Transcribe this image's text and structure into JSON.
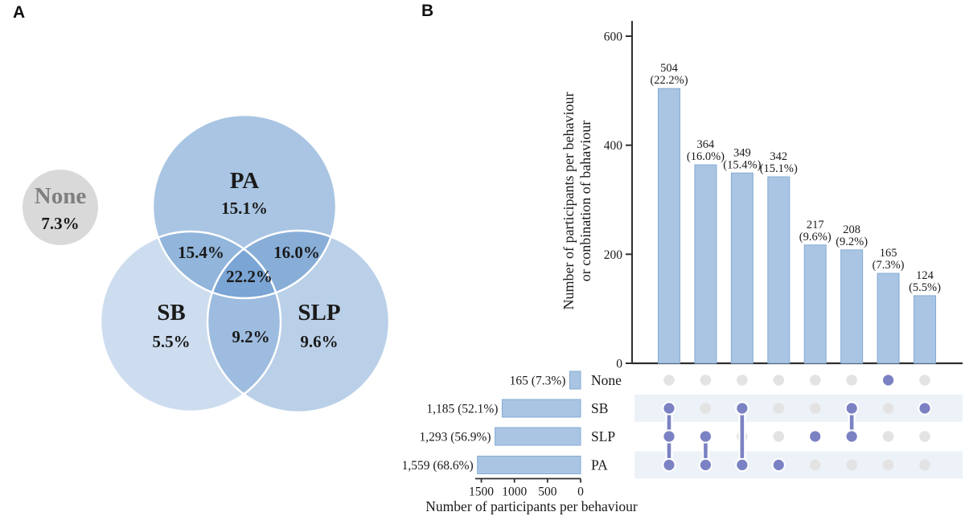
{
  "panels": {
    "a": "A",
    "b": "B"
  },
  "colors": {
    "venn_base": "#5b8fc9",
    "venn_none_fill": "#d9d9d9",
    "venn_none_label": "#7f7f7f",
    "bar_fill": "#a9c5e3",
    "bar_border": "#85abd3",
    "dot_active": "#7b82c3",
    "dot_inactive": "#e3e3e3",
    "stripe": "#edf2f8",
    "axis": "#2f2f2f",
    "text": "#1a1a1a"
  },
  "chart_data": [
    {
      "type": "venn",
      "set_labels": {
        "pa": "PA",
        "sb": "SB",
        "slp": "SLP",
        "none": "None"
      },
      "regions": [
        {
          "sets": [
            "None"
          ],
          "pct": 7.3,
          "display": "7.3%"
        },
        {
          "sets": [
            "PA"
          ],
          "pct": 15.1,
          "display": "15.1%"
        },
        {
          "sets": [
            "SB"
          ],
          "pct": 5.5,
          "display": "5.5%"
        },
        {
          "sets": [
            "SLP"
          ],
          "pct": 9.6,
          "display": "9.6%"
        },
        {
          "sets": [
            "PA",
            "SB"
          ],
          "pct": 15.4,
          "display": "15.4%"
        },
        {
          "sets": [
            "PA",
            "SLP"
          ],
          "pct": 16.0,
          "display": "16.0%"
        },
        {
          "sets": [
            "SB",
            "SLP"
          ],
          "pct": 9.2,
          "display": "9.2%"
        },
        {
          "sets": [
            "PA",
            "SB",
            "SLP"
          ],
          "pct": 22.2,
          "display": "22.2%"
        }
      ]
    },
    {
      "type": "upset",
      "ylabel_lines": [
        "Number of participants per behaviour",
        "or conbination of bahaviour"
      ],
      "yticks": [
        0,
        200,
        400,
        600
      ],
      "ylim": [
        0,
        620
      ],
      "intersections": [
        {
          "value": 504,
          "display": "504",
          "pct_display": "(22.2%)",
          "sets": [
            "SB",
            "SLP",
            "PA"
          ]
        },
        {
          "value": 364,
          "display": "364",
          "pct_display": "(16.0%)",
          "sets": [
            "SLP",
            "PA"
          ]
        },
        {
          "value": 349,
          "display": "349",
          "pct_display": "(15.4%)",
          "sets": [
            "SB",
            "PA"
          ]
        },
        {
          "value": 342,
          "display": "342",
          "pct_display": "(15.1%)",
          "sets": [
            "PA"
          ]
        },
        {
          "value": 217,
          "display": "217",
          "pct_display": "(9.6%)",
          "sets": [
            "SLP"
          ]
        },
        {
          "value": 208,
          "display": "208",
          "pct_display": "(9.2%)",
          "sets": [
            "SB",
            "SLP"
          ]
        },
        {
          "value": 165,
          "display": "165",
          "pct_display": "(7.3%)",
          "sets": [
            "None"
          ]
        },
        {
          "value": 124,
          "display": "124",
          "pct_display": "(5.5%)",
          "sets": [
            "SB"
          ]
        }
      ],
      "matrix_rows": [
        "None",
        "SB",
        "SLP",
        "PA"
      ],
      "set_sizes": {
        "xlabel": "Number of participants per behaviour",
        "xticks": [
          1500,
          1000,
          500,
          0
        ],
        "xlim": [
          0,
          1600
        ],
        "rows": [
          {
            "label": "None",
            "value": 165,
            "display": "165 (7.3%)"
          },
          {
            "label": "SB",
            "value": 1185,
            "display": "1,185 (52.1%)"
          },
          {
            "label": "SLP",
            "value": 1293,
            "display": "1,293 (56.9%)"
          },
          {
            "label": "PA",
            "value": 1559,
            "display": "1,559 (68.6%)"
          }
        ]
      }
    }
  ]
}
